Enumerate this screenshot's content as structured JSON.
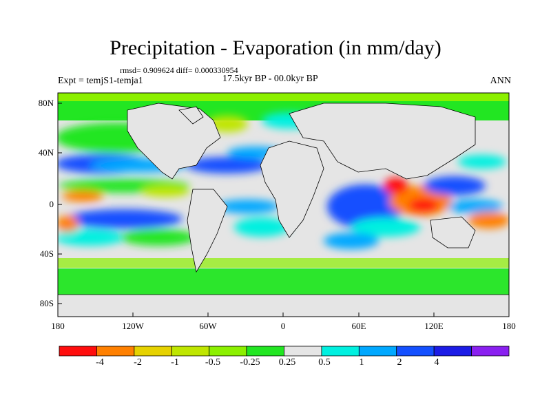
{
  "title": "Precipitation - Evaporation (in mm/day)",
  "stats": "rmsd= 0.909624 diff= 0.000330954",
  "experiment": "Expt = temjS1-temja1",
  "period": "17.5kyr BP - 00.0kyr BP",
  "season": "ANN",
  "map": {
    "lat_labels": [
      "80N",
      "40N",
      "0",
      "40S",
      "80S"
    ],
    "lon_labels": [
      "180",
      "120W",
      "60W",
      "0",
      "60E",
      "120E",
      "180"
    ]
  },
  "colorbar": {
    "colors": [
      "#ff0d0d",
      "#ff8000",
      "#e6d200",
      "#bfe600",
      "#8cf000",
      "#22e622",
      "#e5e5e5",
      "#00f0e0",
      "#00a8ff",
      "#1450ff",
      "#1c1ce6",
      "#8a20f0"
    ],
    "labels": [
      "-4",
      "-2",
      "-1",
      "-0.5",
      "-0.25",
      "0.25",
      "0.5",
      "1",
      "2",
      "4"
    ]
  },
  "palette": {
    "land_background": "#e5e5e5",
    "coast": "#000000"
  }
}
